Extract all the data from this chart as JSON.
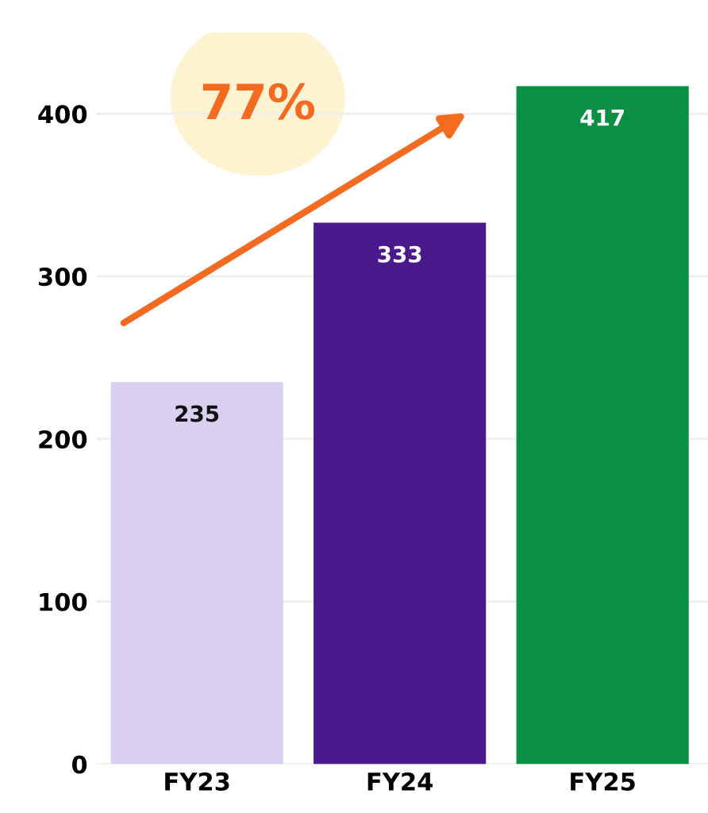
{
  "chart_data": {
    "type": "bar",
    "categories": [
      "FY23",
      "FY24",
      "FY25"
    ],
    "values": [
      235,
      333,
      417
    ],
    "colors": [
      "#d9cff0",
      "#4a1a8c",
      "#0a8f45"
    ],
    "ylim": [
      0,
      450
    ],
    "yticks": [
      0,
      100,
      200,
      300,
      400
    ],
    "grid": "y",
    "data_labels": true,
    "annotations": [
      "77%"
    ]
  }
}
